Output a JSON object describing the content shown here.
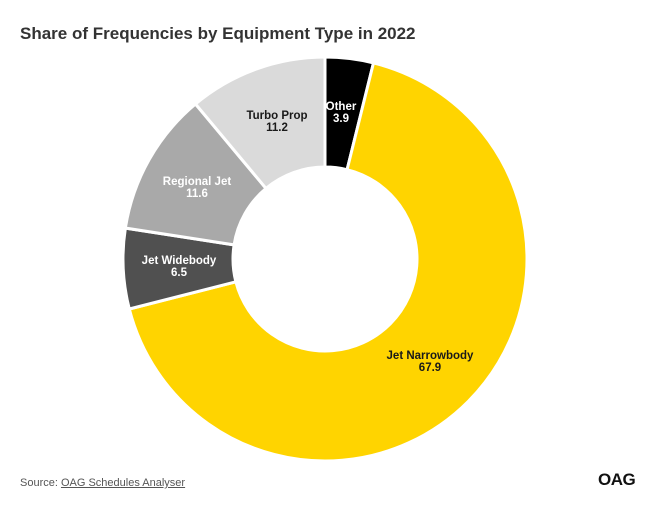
{
  "chart_data": {
    "type": "pie",
    "title": "Share of Frequencies by Equipment Type in 2022",
    "slices": [
      {
        "label": "Other",
        "value": 3.9,
        "color": "#000000",
        "text_color": "#ffffff"
      },
      {
        "label": "Jet Narrowbody",
        "value": 67.9,
        "color": "#ffd400",
        "text_color": "#1a1a1a"
      },
      {
        "label": "Jet Widebody",
        "value": 6.5,
        "color": "#505050",
        "text_color": "#ffffff"
      },
      {
        "label": "Regional Jet",
        "value": 11.6,
        "color": "#a9a9a9",
        "text_color": "#ffffff"
      },
      {
        "label": "Turbo Prop",
        "value": 11.2,
        "color": "#dadada",
        "text_color": "#1a1a1a"
      }
    ],
    "donut": true
  },
  "footer": {
    "source_prefix": "Source: ",
    "source_link": "OAG Schedules Analyser",
    "logo": "OAG"
  }
}
